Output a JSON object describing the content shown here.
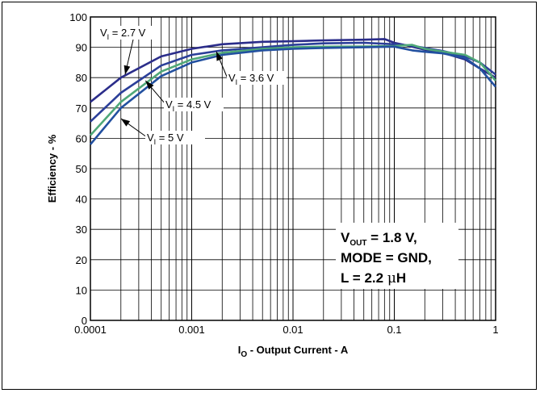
{
  "chart_data": {
    "type": "line",
    "xscale": "log",
    "xlim": [
      0.0001,
      1
    ],
    "ylim": [
      0,
      100
    ],
    "grid": true,
    "xlabel_main": "I",
    "xlabel_sub": "O",
    "xlabel_rest": " - Output Current - A",
    "ylabel": "Efficiency - %",
    "x_tick_labels": [
      "0.0001",
      "0.001",
      "0.01",
      "0.1",
      "1"
    ],
    "y_tick_labels": [
      "0",
      "10",
      "20",
      "30",
      "40",
      "50",
      "60",
      "70",
      "80",
      "90",
      "100"
    ],
    "conditions": {
      "line1_main": "V",
      "line1_sub": "OUT",
      "line1_rest": " = 1.8 V,",
      "line2": "MODE = GND,",
      "line3_pre": "L = 2.2 ",
      "line3_mu": "μ",
      "line3_post": "H"
    },
    "series": [
      {
        "name_main": "V",
        "name_sub": "I",
        "name_rest": " = 2.7 V",
        "color": "#2b2d8a",
        "points": [
          [
            0.0001,
            72
          ],
          [
            0.0002,
            80
          ],
          [
            0.0005,
            87
          ],
          [
            0.001,
            89.5
          ],
          [
            0.002,
            91
          ],
          [
            0.005,
            91.8
          ],
          [
            0.01,
            92
          ],
          [
            0.02,
            92.3
          ],
          [
            0.05,
            92.5
          ],
          [
            0.08,
            92.7
          ],
          [
            0.1,
            91.5
          ],
          [
            0.15,
            90.2
          ],
          [
            0.2,
            89.2
          ],
          [
            0.3,
            88.2
          ],
          [
            0.5,
            86
          ],
          [
            0.7,
            83
          ],
          [
            1,
            80
          ]
        ]
      },
      {
        "name_main": "V",
        "name_sub": "I",
        "name_rest": " = 3.6 V",
        "color": "#2b3f99",
        "points": [
          [
            0.0001,
            65.5
          ],
          [
            0.0002,
            75
          ],
          [
            0.0005,
            84
          ],
          [
            0.001,
            87.5
          ],
          [
            0.002,
            89
          ],
          [
            0.005,
            90
          ],
          [
            0.01,
            90.8
          ],
          [
            0.02,
            91.3
          ],
          [
            0.05,
            91.5
          ],
          [
            0.1,
            91
          ],
          [
            0.15,
            90.5
          ],
          [
            0.2,
            89.8
          ],
          [
            0.3,
            88.8
          ],
          [
            0.5,
            87
          ],
          [
            0.7,
            85
          ],
          [
            1,
            81
          ]
        ]
      },
      {
        "name_main": "V",
        "name_sub": "I",
        "name_rest": " = 4.5 V",
        "color": "#4fa878",
        "points": [
          [
            0.0001,
            61
          ],
          [
            0.0002,
            72
          ],
          [
            0.0005,
            82
          ],
          [
            0.001,
            86
          ],
          [
            0.002,
            88.2
          ],
          [
            0.005,
            89.5
          ],
          [
            0.01,
            90
          ],
          [
            0.02,
            90.2
          ],
          [
            0.05,
            90.3
          ],
          [
            0.1,
            90.4
          ],
          [
            0.15,
            90.8
          ],
          [
            0.2,
            89.5
          ],
          [
            0.3,
            88.6
          ],
          [
            0.5,
            87.5
          ],
          [
            0.7,
            85
          ],
          [
            1,
            79
          ]
        ]
      },
      {
        "name_main": "V",
        "name_sub": "I",
        "name_rest": " = 5 V",
        "color": "#2250a0",
        "points": [
          [
            0.0001,
            58
          ],
          [
            0.0002,
            70
          ],
          [
            0.0005,
            80.5
          ],
          [
            0.001,
            85
          ],
          [
            0.002,
            87.5
          ],
          [
            0.005,
            89
          ],
          [
            0.01,
            89.5
          ],
          [
            0.02,
            89.8
          ],
          [
            0.05,
            90
          ],
          [
            0.1,
            90.2
          ],
          [
            0.15,
            89
          ],
          [
            0.2,
            88.5
          ],
          [
            0.3,
            88
          ],
          [
            0.5,
            86.5
          ],
          [
            0.7,
            83
          ],
          [
            1,
            77
          ]
        ]
      }
    ]
  }
}
